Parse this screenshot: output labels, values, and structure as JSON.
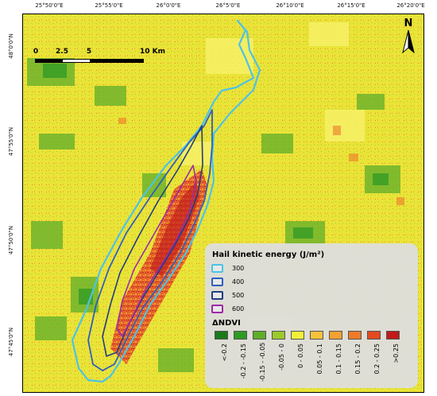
{
  "map": {
    "lon_ticks": [
      "25°50'0\"E",
      "25°55'0\"E",
      "26°0'0\"E",
      "26°5'0\"E",
      "26°10'0\"E",
      "26°15'0\"E",
      "26°20'0\"E"
    ],
    "lat_ticks": [
      "48°0'0\"N",
      "47°55'0\"N",
      "47°50'0\"N",
      "47°45'0\"N"
    ],
    "scale_bar": {
      "labels": [
        "0",
        "2.5",
        "5",
        "10 Km"
      ]
    },
    "north_label": "N",
    "base_color": "#e9e437"
  },
  "legend": {
    "hail_title": "Hail kinetic energy (J/m²)",
    "hail_classes": [
      {
        "label": "300",
        "color": "#4cc3e6"
      },
      {
        "label": "400",
        "color": "#2f5fbf"
      },
      {
        "label": "500",
        "color": "#1f3e80"
      },
      {
        "label": "600",
        "color": "#9b2aa6"
      }
    ],
    "ndvi_title": "ΔNDVI",
    "ndvi_classes": [
      {
        "label": "<-0.2",
        "color": "#1a7a1a"
      },
      {
        "label": "-0.2 - -0.15",
        "color": "#2e9a24"
      },
      {
        "label": "-0.15 - -0.05",
        "color": "#5fae2a"
      },
      {
        "label": "-0.05 - 0",
        "color": "#9cc92c"
      },
      {
        "label": "0 - 0.05",
        "color": "#f2ef3a"
      },
      {
        "label": "0.05 - 0.1",
        "color": "#f7c13c"
      },
      {
        "label": "0.1 - 0.15",
        "color": "#f2a132"
      },
      {
        "label": "0.15 - 0.2",
        "color": "#ee7a2a"
      },
      {
        "label": "0.2 - 0.25",
        "color": "#e44a22"
      },
      {
        "label": ">0.25",
        "color": "#c01a1a"
      }
    ]
  }
}
